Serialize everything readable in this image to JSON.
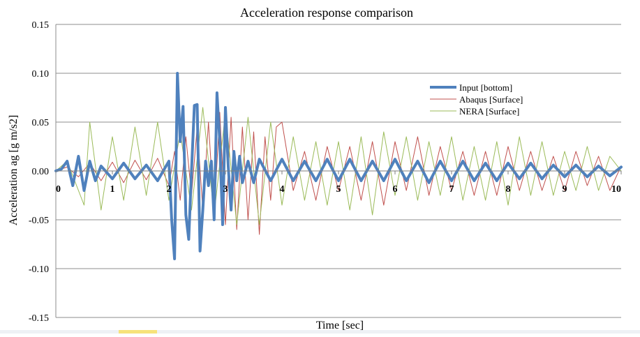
{
  "chart_data": {
    "type": "line",
    "title": "Acceleration response comparison",
    "xlabel": "Time [sec]",
    "ylabel": "Acceleration ag [g m/s2]",
    "xlim": [
      0,
      10
    ],
    "ylim": [
      -0.15,
      0.15
    ],
    "x_ticks": [
      0,
      1,
      2,
      3,
      4,
      5,
      6,
      7,
      8,
      9,
      10
    ],
    "x_tick_labels": [
      "0",
      "1",
      "2",
      "3",
      "4",
      "5",
      "6",
      "7",
      "8",
      "9",
      "10"
    ],
    "y_ticks": [
      -0.15,
      -0.1,
      -0.05,
      0.0,
      0.05,
      0.1,
      0.15
    ],
    "y_tick_labels": [
      "-0.15",
      "-0.10",
      "-0.05",
      "0.00",
      "0.05",
      "0.10",
      "0.15"
    ],
    "grid": "horizontal",
    "legend_position": "top-right",
    "series": [
      {
        "name": "Abaqus [Surface]",
        "color": "#c0504d",
        "style": "thin",
        "x": [
          0,
          0.2,
          0.4,
          0.6,
          0.8,
          1.0,
          1.2,
          1.4,
          1.6,
          1.8,
          2.0,
          2.1,
          2.2,
          2.3,
          2.4,
          2.5,
          2.6,
          2.7,
          2.8,
          2.9,
          3.0,
          3.1,
          3.2,
          3.3,
          3.4,
          3.5,
          3.6,
          3.7,
          3.8,
          3.9,
          4.0,
          4.2,
          4.4,
          4.6,
          4.8,
          5.0,
          5.2,
          5.4,
          5.6,
          5.8,
          6.0,
          6.2,
          6.4,
          6.6,
          6.8,
          7.0,
          7.2,
          7.4,
          7.6,
          7.8,
          8.0,
          8.2,
          8.4,
          8.6,
          8.8,
          9.0,
          9.2,
          9.4,
          9.6,
          9.8,
          10.0
        ],
        "y": [
          0.0,
          0.004,
          -0.006,
          0.008,
          -0.01,
          0.009,
          -0.012,
          0.011,
          -0.009,
          0.013,
          -0.015,
          0.02,
          -0.03,
          0.035,
          -0.025,
          0.045,
          -0.04,
          0.05,
          -0.045,
          0.06,
          -0.055,
          0.055,
          -0.06,
          0.045,
          -0.05,
          0.04,
          -0.065,
          0.035,
          -0.03,
          0.045,
          0.05,
          -0.02,
          0.02,
          -0.03,
          0.025,
          -0.02,
          0.025,
          -0.03,
          0.03,
          -0.035,
          0.03,
          -0.02,
          0.035,
          -0.025,
          0.025,
          -0.02,
          0.02,
          -0.025,
          0.02,
          -0.025,
          0.025,
          -0.02,
          0.02,
          -0.02,
          0.015,
          -0.02,
          0.02,
          -0.015,
          0.015,
          -0.02,
          0.005
        ]
      },
      {
        "name": "NERA [Surface]",
        "color": "#9bbb59",
        "style": "thin",
        "x": [
          0,
          0.2,
          0.4,
          0.5,
          0.6,
          0.8,
          1.0,
          1.2,
          1.4,
          1.6,
          1.8,
          2.0,
          2.2,
          2.4,
          2.6,
          2.8,
          3.0,
          3.2,
          3.4,
          3.6,
          3.8,
          4.0,
          4.2,
          4.4,
          4.6,
          4.8,
          5.0,
          5.2,
          5.4,
          5.6,
          5.8,
          6.0,
          6.2,
          6.4,
          6.6,
          6.8,
          7.0,
          7.2,
          7.4,
          7.6,
          7.8,
          8.0,
          8.2,
          8.4,
          8.6,
          8.8,
          9.0,
          9.2,
          9.4,
          9.6,
          9.8,
          10.0
        ],
        "y": [
          0.0,
          0.01,
          -0.02,
          -0.035,
          0.05,
          -0.04,
          0.035,
          -0.03,
          0.045,
          -0.025,
          0.05,
          -0.03,
          0.04,
          -0.04,
          0.065,
          -0.045,
          0.06,
          -0.055,
          0.055,
          -0.055,
          0.05,
          -0.035,
          0.035,
          -0.03,
          0.03,
          -0.035,
          0.03,
          -0.04,
          0.035,
          -0.045,
          0.04,
          -0.025,
          0.035,
          -0.03,
          0.03,
          -0.025,
          0.035,
          -0.03,
          0.025,
          -0.03,
          0.03,
          -0.035,
          0.035,
          -0.025,
          0.03,
          -0.025,
          0.02,
          -0.02,
          0.025,
          -0.02,
          0.015,
          0.0
        ]
      },
      {
        "name": "Input [bottom]",
        "color": "#4f81bd",
        "style": "thick",
        "x": [
          0,
          0.1,
          0.2,
          0.3,
          0.4,
          0.5,
          0.6,
          0.7,
          0.8,
          1.0,
          1.2,
          1.4,
          1.6,
          1.8,
          2.0,
          2.05,
          2.1,
          2.15,
          2.2,
          2.25,
          2.3,
          2.35,
          2.4,
          2.45,
          2.5,
          2.55,
          2.6,
          2.65,
          2.7,
          2.75,
          2.8,
          2.85,
          2.9,
          2.95,
          3.0,
          3.05,
          3.1,
          3.15,
          3.2,
          3.25,
          3.3,
          3.4,
          3.5,
          3.6,
          3.8,
          4.0,
          4.2,
          4.4,
          4.6,
          4.8,
          5.0,
          5.2,
          5.4,
          5.6,
          5.8,
          6.0,
          6.2,
          6.4,
          6.6,
          6.8,
          7.0,
          7.2,
          7.4,
          7.6,
          7.8,
          8.0,
          8.2,
          8.4,
          8.6,
          8.8,
          9.0,
          9.2,
          9.4,
          9.6,
          9.8,
          10.0
        ],
        "y": [
          0.0,
          0.002,
          0.01,
          -0.015,
          0.015,
          -0.02,
          0.01,
          -0.01,
          0.005,
          -0.008,
          0.008,
          -0.008,
          0.006,
          -0.01,
          0.01,
          -0.05,
          -0.09,
          0.1,
          0.03,
          0.066,
          -0.045,
          -0.07,
          0.0,
          0.067,
          0.068,
          -0.082,
          -0.04,
          0.01,
          -0.015,
          0.01,
          -0.05,
          0.08,
          0.03,
          -0.055,
          0.065,
          0.005,
          -0.04,
          0.02,
          -0.01,
          0.015,
          -0.012,
          0.01,
          -0.012,
          0.012,
          -0.01,
          0.012,
          -0.01,
          0.01,
          -0.01,
          0.012,
          -0.01,
          0.012,
          -0.01,
          0.01,
          -0.01,
          0.012,
          -0.01,
          0.01,
          -0.012,
          0.01,
          -0.01,
          0.01,
          -0.01,
          0.008,
          -0.01,
          0.008,
          -0.008,
          0.008,
          -0.008,
          0.006,
          -0.006,
          0.006,
          -0.006,
          0.005,
          -0.005,
          0.004
        ]
      }
    ]
  }
}
